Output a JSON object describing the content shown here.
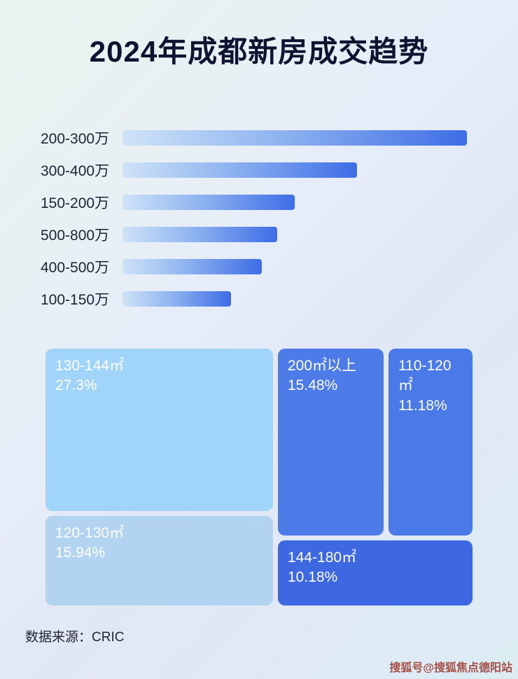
{
  "page": {
    "title": "2024年成都新房成交趋势",
    "source": "数据来源：CRIC",
    "watermark": "搜狐号@搜狐焦点德阳站"
  },
  "colors": {
    "bar_gradient_start": "#cfe3f8",
    "bar_gradient_end": "#3e6de6",
    "treemap_block_130_144": "#a0d4f8",
    "treemap_block_120_130": "#b3d4f1",
    "treemap_block_200_plus": "#4d7ce9",
    "treemap_block_110_120": "#4a79e8",
    "treemap_block_144_180": "#3d68e2",
    "title_color": "#0e1330"
  },
  "chart_data": [
    {
      "type": "bar",
      "orientation": "horizontal",
      "title": "",
      "categories": [
        "200-300万",
        "300-400万",
        "150-200万",
        "500-800万",
        "400-500万",
        "100-150万"
      ],
      "values": [
        100,
        68,
        50,
        45,
        40.5,
        31.5
      ],
      "value_unit": "relative bar length (% of longest bar); no numeric axis shown",
      "xlabel": "",
      "ylabel": "",
      "grid": false,
      "legend": false
    },
    {
      "type": "treemap",
      "title": "",
      "items": [
        {
          "label": "130-144㎡",
          "value_pct": 27.3,
          "value_text": "27.3%"
        },
        {
          "label": "200㎡以上",
          "value_pct": 15.48,
          "value_text": "15.48%"
        },
        {
          "label": "110-120㎡",
          "value_pct": 11.18,
          "value_text": "11.18%"
        },
        {
          "label": "120-130㎡",
          "value_pct": 15.94,
          "value_text": "15.94%"
        },
        {
          "label": "144-180㎡",
          "value_pct": 10.18,
          "value_text": "10.18%"
        }
      ]
    }
  ]
}
